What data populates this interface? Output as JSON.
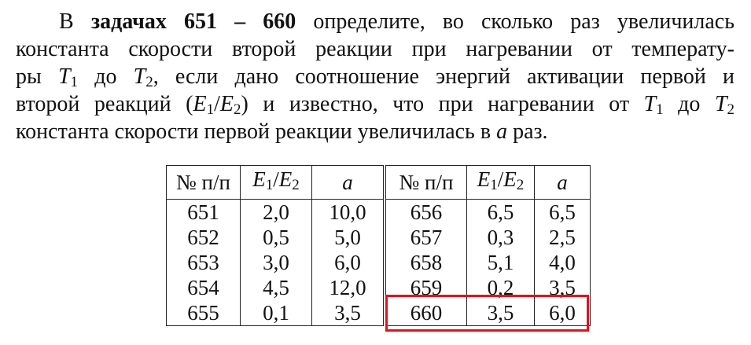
{
  "text": {
    "lines": [
      [
        "В ",
        "задачах 651 – 660",
        " определите, во сколько раз увеличилась"
      ],
      [
        "константа скорости второй реакции при нагревании от температу-"
      ],
      [
        "ры ",
        "T",
        "1",
        " до ",
        "T",
        "2",
        ", если дано соотношение энергий активации первой и"
      ],
      [
        "второй реакций (",
        "E",
        "1",
        "/",
        "E",
        "2",
        ") и известно, что при нагревании от ",
        "T",
        "1",
        " до ",
        "T",
        "2"
      ],
      [
        "константа скорости первой реакции увеличилась в ",
        "a",
        " раз."
      ]
    ]
  },
  "table": {
    "header": [
      [
        "№ п/п"
      ],
      [
        "E",
        "1",
        "/",
        "E",
        "2"
      ],
      [
        "a"
      ],
      [
        "№ п/п"
      ],
      [
        "E",
        "1",
        "/",
        "E",
        "2"
      ],
      [
        "a"
      ]
    ],
    "rows": [
      [
        "651",
        "2,0",
        "10,0",
        "656",
        "6,5",
        "6,5"
      ],
      [
        "652",
        "0,5",
        "5,0",
        "657",
        "0,3",
        "2,5"
      ],
      [
        "653",
        "3,0",
        "6,0",
        "658",
        "5,1",
        "4,0"
      ],
      [
        "654",
        "4,5",
        "12,0",
        "659",
        "0,2",
        "3,5"
      ],
      [
        "655",
        "0,1",
        "3,5",
        "660",
        "3,5",
        "6,0"
      ]
    ]
  }
}
